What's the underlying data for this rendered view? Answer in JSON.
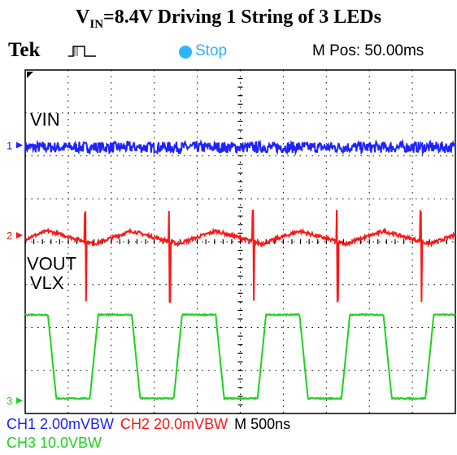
{
  "title": {
    "prefix": "V",
    "subscript": "IN",
    "rest": "=8.4V Driving 1 String of 3 LEDs"
  },
  "topbar": {
    "brand": "Tek",
    "trigger_icon": "pulse-trigger-icon",
    "run_state": "Stop",
    "position": "M Pos: 50.00ms"
  },
  "colors": {
    "ch1": "#1e22ff",
    "ch2": "#ff1616",
    "ch3": "#1ed21e",
    "status": "#2db4ff"
  },
  "chart_data": {
    "type": "line",
    "x_range_divisions": [
      0,
      10
    ],
    "y_range_divisions": [
      0,
      8
    ],
    "grid": true,
    "timebase": "500ns",
    "series": [
      {
        "name": "VIN",
        "marker": "1",
        "scale": "2.00mVBW",
        "baseline_div": 6.2,
        "shape": "noise",
        "amplitude_div": 0.12
      },
      {
        "name": "VOUT",
        "marker": "2",
        "scale": "20.0mVBW",
        "baseline_div": 4.1,
        "shape": "sawtooth-with-spikes",
        "period_div": 1.95,
        "amplitude_div": 0.3
      },
      {
        "name": "VLX",
        "marker": "3",
        "scale": "10.0VBW",
        "baseline_div": 0.4,
        "shape": "square",
        "high_div": 2.3,
        "low_div": 0.35,
        "period_div": 1.95
      }
    ]
  },
  "readout": {
    "row1": [
      {
        "ch": "CH1",
        "value": "2.00mVBW"
      },
      {
        "ch": "CH2",
        "value": "20.0mVBW"
      },
      {
        "ch": "M",
        "value": "500ns"
      }
    ],
    "row2": [
      {
        "ch": "CH3",
        "value": "10.0VBW"
      }
    ]
  }
}
